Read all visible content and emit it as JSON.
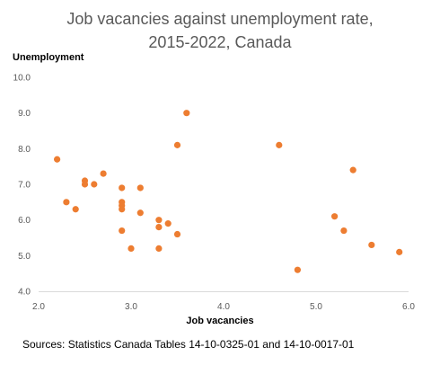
{
  "chart_data": {
    "type": "scatter",
    "title": "Job vacancies against unemployment rate, 2015-2022, Canada",
    "title_lines": [
      "Job vacancies against unemployment rate,",
      "2015-2022, Canada"
    ],
    "xlabel": "Job vacancies",
    "ylabel": "Unemployment",
    "xlim": [
      2.0,
      6.0
    ],
    "ylim": [
      4.0,
      10.0
    ],
    "x_ticks": [
      "2.0",
      "3.0",
      "4.0",
      "5.0",
      "6.0"
    ],
    "y_ticks": [
      "4.0",
      "5.0",
      "6.0",
      "7.0",
      "8.0",
      "9.0",
      "10.0"
    ],
    "grid": false,
    "legend": "none",
    "marker_color": "#ED7D31",
    "series": [
      {
        "points": [
          {
            "x": 2.2,
            "y": 7.7
          },
          {
            "x": 2.3,
            "y": 6.5
          },
          {
            "x": 2.4,
            "y": 6.3
          },
          {
            "x": 2.5,
            "y": 7.1
          },
          {
            "x": 2.5,
            "y": 7.0
          },
          {
            "x": 2.6,
            "y": 7.0
          },
          {
            "x": 2.7,
            "y": 7.3
          },
          {
            "x": 2.9,
            "y": 6.9
          },
          {
            "x": 2.9,
            "y": 6.5
          },
          {
            "x": 2.9,
            "y": 6.4
          },
          {
            "x": 2.9,
            "y": 6.3
          },
          {
            "x": 2.9,
            "y": 5.7
          },
          {
            "x": 3.0,
            "y": 5.2
          },
          {
            "x": 3.1,
            "y": 6.9
          },
          {
            "x": 3.1,
            "y": 6.2
          },
          {
            "x": 3.3,
            "y": 6.0
          },
          {
            "x": 3.3,
            "y": 5.8
          },
          {
            "x": 3.3,
            "y": 5.2
          },
          {
            "x": 3.4,
            "y": 5.9
          },
          {
            "x": 3.5,
            "y": 8.1
          },
          {
            "x": 3.5,
            "y": 5.6
          },
          {
            "x": 3.6,
            "y": 9.0
          },
          {
            "x": 4.6,
            "y": 8.1
          },
          {
            "x": 4.8,
            "y": 4.6
          },
          {
            "x": 5.2,
            "y": 6.1
          },
          {
            "x": 5.3,
            "y": 5.7
          },
          {
            "x": 5.4,
            "y": 7.4
          },
          {
            "x": 5.6,
            "y": 5.3
          },
          {
            "x": 5.9,
            "y": 5.1
          }
        ]
      }
    ]
  },
  "source_note": "Sources: Statistics Canada Tables 14-10-0325-01 and 14-10-0017-01"
}
